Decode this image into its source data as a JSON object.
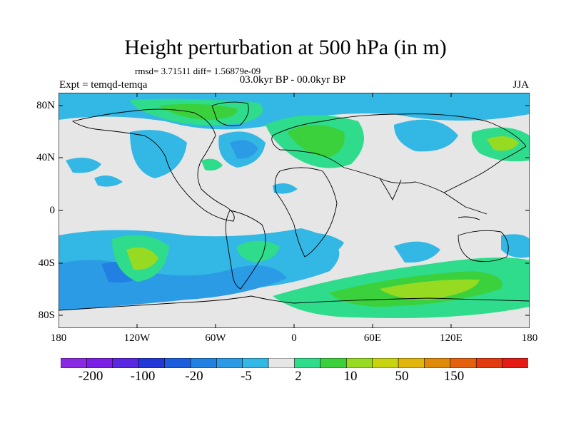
{
  "figure": {
    "title": "Height perturbation at 500 hPa (in m)",
    "stats": "rmsd= 3.71511 diff= 1.56879e-09",
    "period": "03.0kyr BP - 00.0kyr BP",
    "experiment": "Expt = temqd-temqa",
    "season": "JJA"
  },
  "map": {
    "background_color": "#e6e6e6",
    "lat_labels": [
      "80N",
      "40N",
      "0",
      "40S",
      "80S"
    ],
    "lon_labels": [
      "180",
      "120W",
      "60W",
      "0",
      "60E",
      "120E",
      "180"
    ]
  },
  "colorbar": {
    "colors": [
      "#8a2be2",
      "#7b1fe6",
      "#5a27e0",
      "#2438d8",
      "#1b5fde",
      "#2280e2",
      "#2b9be6",
      "#33b7e4",
      "#e6e6e6",
      "#2fdc8c",
      "#3bd13c",
      "#96db22",
      "#c8d410",
      "#e0b60c",
      "#e08a0a",
      "#e4600c",
      "#e43a10",
      "#e41a14"
    ],
    "labels": [
      "-200",
      "-100",
      "-20",
      "-5",
      "2",
      "10",
      "50",
      "150"
    ]
  }
}
